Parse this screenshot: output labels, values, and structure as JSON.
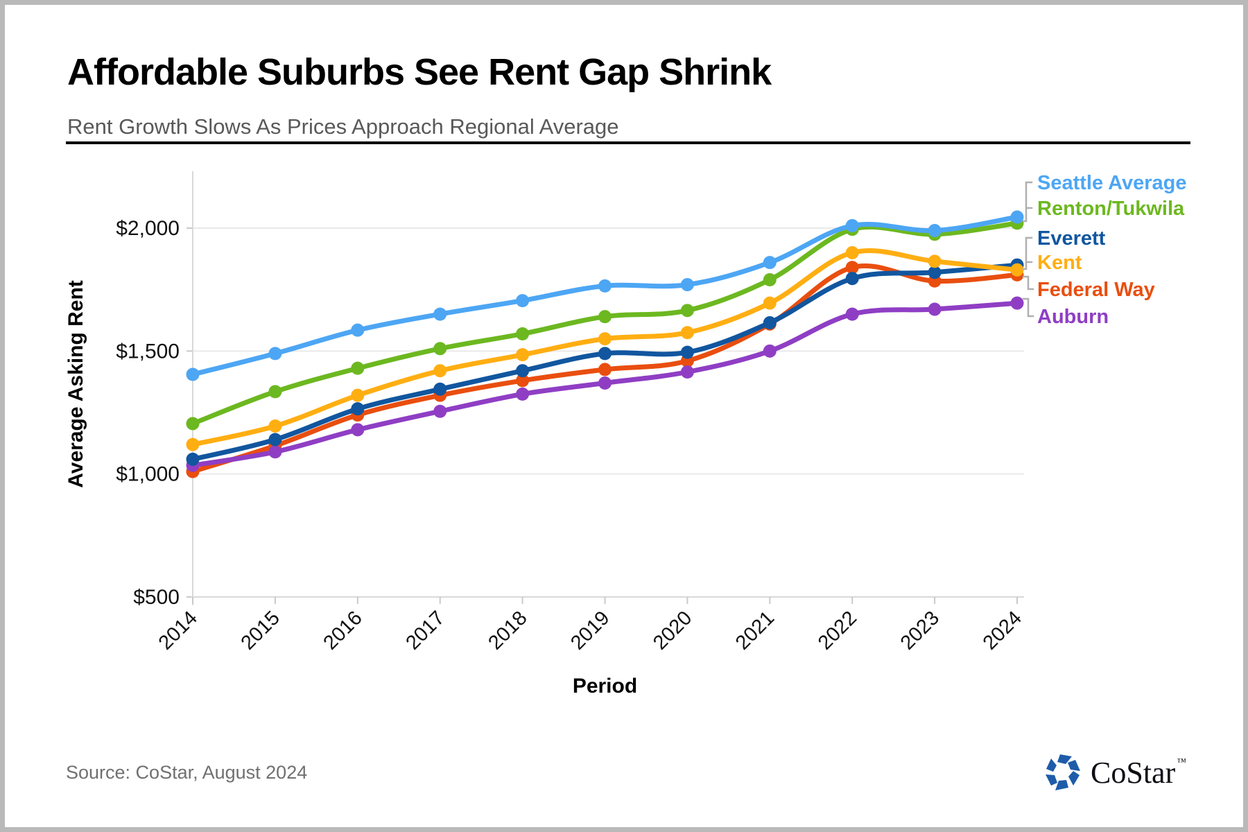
{
  "page": {
    "title": "Affordable Suburbs See Rent Gap Shrink",
    "subtitle": "Rent Growth Slows As Prices Approach Regional Average",
    "source": "Source: CoStar, August 2024",
    "brand": {
      "name": "CoStar",
      "tm": "TM",
      "logo_color": "#1E5CA9"
    }
  },
  "chart_data": {
    "type": "line",
    "title": "",
    "xlabel": "Period",
    "ylabel": "Average Asking Rent",
    "categories": [
      "2014",
      "2015",
      "2016",
      "2017",
      "2018",
      "2019",
      "2020",
      "2021",
      "2022",
      "2023",
      "2024"
    ],
    "y_ticks": [
      500,
      1000,
      1500,
      2000
    ],
    "y_tick_labels": [
      "$500",
      "$1,000",
      "$1,500",
      "$2,000"
    ],
    "ylim": [
      500,
      2150
    ],
    "grid": "horizontal",
    "legend_position": "right-endpoint-labels",
    "series": [
      {
        "name": "Seattle Average",
        "slug": "seattle-average",
        "color": "#4DA6F4",
        "values": [
          1405,
          1490,
          1585,
          1650,
          1705,
          1765,
          1770,
          1860,
          2010,
          1990,
          2045
        ]
      },
      {
        "name": "Renton/Tukwila",
        "slug": "renton-tukwila",
        "color": "#6CB820",
        "values": [
          1205,
          1335,
          1430,
          1510,
          1570,
          1640,
          1665,
          1790,
          1995,
          1975,
          2020
        ]
      },
      {
        "name": "Everett",
        "slug": "everett",
        "color": "#11569F",
        "values": [
          1060,
          1140,
          1265,
          1345,
          1420,
          1490,
          1495,
          1615,
          1795,
          1820,
          1850
        ]
      },
      {
        "name": "Kent",
        "slug": "kent",
        "color": "#FFAE12",
        "values": [
          1120,
          1195,
          1320,
          1420,
          1485,
          1550,
          1575,
          1695,
          1900,
          1865,
          1830
        ]
      },
      {
        "name": "Federal Way",
        "slug": "federal-way",
        "color": "#E94E0F",
        "values": [
          1010,
          1115,
          1240,
          1320,
          1380,
          1425,
          1460,
          1610,
          1840,
          1785,
          1810
        ]
      },
      {
        "name": "Auburn",
        "slug": "auburn",
        "color": "#8F3EC4",
        "values": [
          1035,
          1090,
          1180,
          1255,
          1325,
          1370,
          1415,
          1500,
          1650,
          1670,
          1695
        ]
      }
    ]
  }
}
